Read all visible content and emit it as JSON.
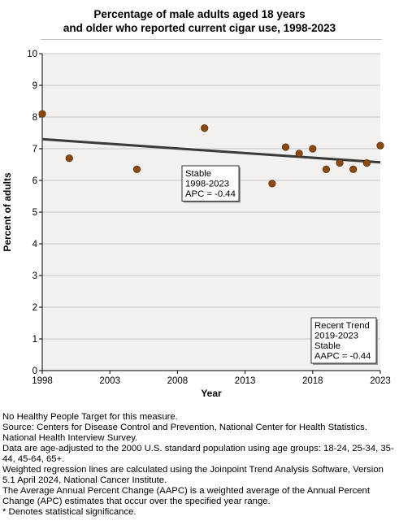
{
  "chart_data": {
    "type": "scatter",
    "title_lines": [
      "Percentage of male adults aged 18 years",
      "and older who reported current cigar use, 1998-2023"
    ],
    "xlabel": "Year",
    "ylabel": "Percent of adults",
    "xlim": [
      1998,
      2023
    ],
    "ylim": [
      0,
      10
    ],
    "x_ticks": [
      1998,
      2003,
      2008,
      2013,
      2018,
      2023
    ],
    "y_ticks": [
      0,
      1,
      2,
      3,
      4,
      5,
      6,
      7,
      8,
      9,
      10
    ],
    "grid": true,
    "points": [
      {
        "x": 1998,
        "y": 8.1
      },
      {
        "x": 2000,
        "y": 6.7
      },
      {
        "x": 2005,
        "y": 6.35
      },
      {
        "x": 2010,
        "y": 7.65
      },
      {
        "x": 2015,
        "y": 5.9
      },
      {
        "x": 2016,
        "y": 7.05
      },
      {
        "x": 2017,
        "y": 6.85
      },
      {
        "x": 2018,
        "y": 7.0
      },
      {
        "x": 2019,
        "y": 6.35
      },
      {
        "x": 2020,
        "y": 6.55
      },
      {
        "x": 2021,
        "y": 6.35
      },
      {
        "x": 2022,
        "y": 6.55
      },
      {
        "x": 2023,
        "y": 7.1
      }
    ],
    "trend_line": {
      "x": [
        1998,
        2023
      ],
      "y": [
        7.3,
        6.57
      ]
    },
    "annotations": [
      {
        "lines": [
          "Stable",
          "1998-2023",
          "APC = -0.44"
        ]
      },
      {
        "lines": [
          "Recent Trend",
          "2019-2023",
          "Stable",
          "AAPC = -0.44"
        ]
      }
    ],
    "colors": {
      "point": "#8b4a12",
      "trend": "#3a3a3a",
      "plot_bg": "#f2f1ef",
      "grid": "#c8c8c8"
    }
  },
  "footnotes": [
    "No Healthy People Target for this measure.",
    "Source: Centers for Disease Control and Prevention, National Center for Health Statistics. National Health Interview Survey.",
    "Data are age-adjusted to the 2000 U.S. standard population using age groups: 18-24, 25-34, 35-44, 45-64, 65+.",
    "Weighted regression lines are calculated using the Joinpoint Trend Analysis Software, Version 5.1 April 2024, National Cancer Institute.",
    "The Average Annual Percent Change (AAPC) is a weighted average of the Annual Percent Change (APC) estimates that occur over the specified year range.",
    "* Denotes statistical significance."
  ]
}
